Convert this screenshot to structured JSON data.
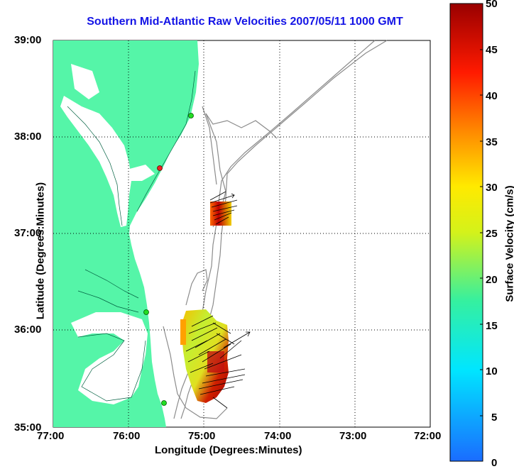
{
  "title": "Southern Mid-Atlantic Raw Velocities 2007/05/11 1000 GMT",
  "axes": {
    "xlabel": "Longitude (Degrees:Minutes)",
    "ylabel": "Latitude (Degrees:Minutes)",
    "x_ticks": [
      "77:00",
      "76:00",
      "75:00",
      "74:00",
      "73:00",
      "72:00"
    ],
    "y_ticks": [
      "39:00",
      "38:00",
      "37:00",
      "36:00",
      "35:00"
    ]
  },
  "colorbar": {
    "label": "Surface Velocity (cm/s)",
    "ticks": [
      "50",
      "45",
      "40",
      "35",
      "30",
      "25",
      "20",
      "15",
      "10",
      "5",
      "0"
    ],
    "min": 0,
    "max": 50
  },
  "colors": {
    "land": "#55f5a8",
    "title": "#1414e6",
    "contour": "#8c8c8c",
    "grid": "#000000"
  },
  "stations": [
    {
      "color": "green"
    },
    {
      "color": "red"
    },
    {
      "color": "green"
    },
    {
      "color": "green"
    }
  ]
}
